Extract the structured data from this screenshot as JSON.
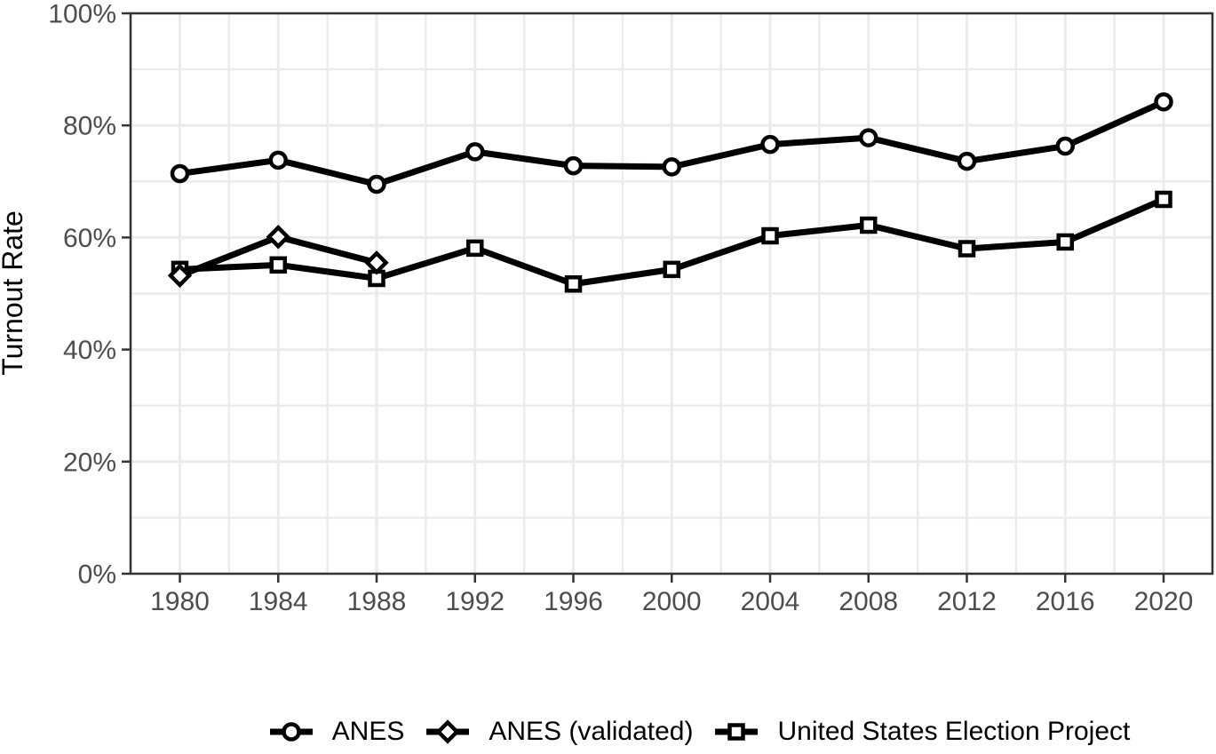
{
  "chart_data": {
    "type": "line",
    "title": "",
    "xlabel": "",
    "ylabel": "Turnout Rate",
    "x": [
      1980,
      1984,
      1988,
      1992,
      1996,
      2000,
      2004,
      2008,
      2012,
      2016,
      2020
    ],
    "x_tick_labels": [
      "1980",
      "1984",
      "1988",
      "1992",
      "1996",
      "2000",
      "2004",
      "2008",
      "2012",
      "2016",
      "2020"
    ],
    "y_tick_values": [
      0,
      20,
      40,
      60,
      80,
      100
    ],
    "y_tick_labels": [
      "0%",
      "20%",
      "40%",
      "60%",
      "80%",
      "100%"
    ],
    "ylim": [
      0,
      100
    ],
    "xlim": [
      1978,
      2022
    ],
    "grid": "major and minor gridlines, light gray, minor vertical every 2 years, minor horizontal every 10%",
    "legend_position": "bottom",
    "series": [
      {
        "name": "ANES",
        "marker": "circle",
        "line_color": "#000000",
        "marker_fill": "#ffffff",
        "values": [
          71.4,
          73.8,
          69.5,
          75.3,
          72.8,
          72.6,
          76.6,
          77.8,
          73.6,
          76.3,
          84.2
        ]
      },
      {
        "name": "ANES (validated)",
        "marker": "diamond",
        "line_color": "#000000",
        "marker_fill": "#ffffff",
        "values": [
          53.2,
          60.1,
          55.5,
          null,
          null,
          null,
          null,
          null,
          null,
          null,
          null
        ]
      },
      {
        "name": "United States Election Project",
        "marker": "square",
        "line_color": "#000000",
        "marker_fill": "#ffffff",
        "values": [
          54.3,
          55.1,
          52.7,
          58.1,
          51.7,
          54.3,
          60.3,
          62.2,
          58.0,
          59.2,
          66.8
        ]
      }
    ],
    "colors": {
      "line": "#000000",
      "marker_fill": "#ffffff",
      "axis_text": "#4d4d4d",
      "axis_line": "#333333",
      "gridline": "#ebebeb",
      "background": "#ffffff"
    }
  }
}
